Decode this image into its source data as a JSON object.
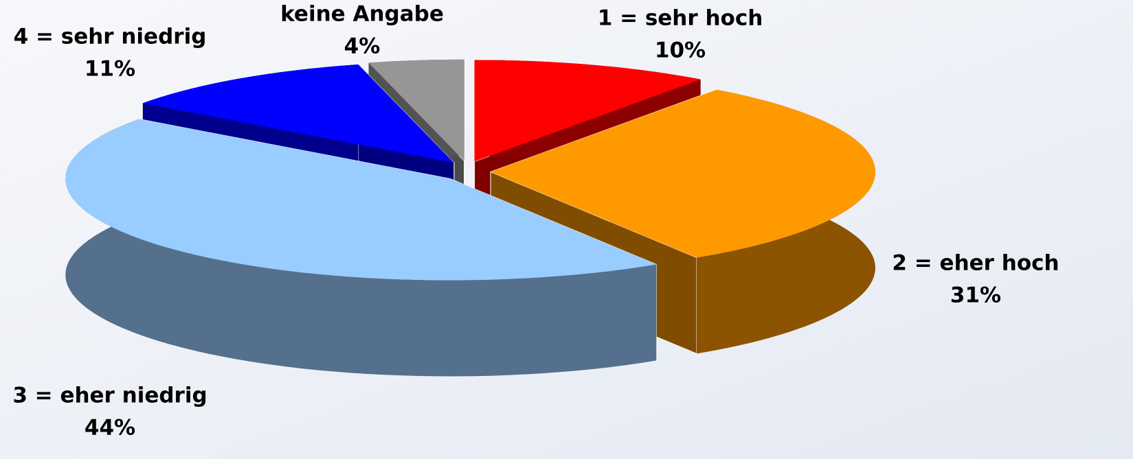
{
  "chart_data": {
    "type": "pie",
    "categories": [
      "1 = sehr hoch",
      "2 = eher hoch",
      "3 = eher niedrig",
      "4 = sehr niedrig",
      "keine Angabe"
    ],
    "values": [
      10,
      31,
      44,
      11,
      4
    ],
    "value_labels": [
      "10%",
      "31%",
      "44%",
      "11%",
      "4%"
    ],
    "colors": [
      "#ff0000",
      "#ff9900",
      "#99ccff",
      "#0000ff",
      "#969696"
    ],
    "three_d": true,
    "exploded": true
  }
}
